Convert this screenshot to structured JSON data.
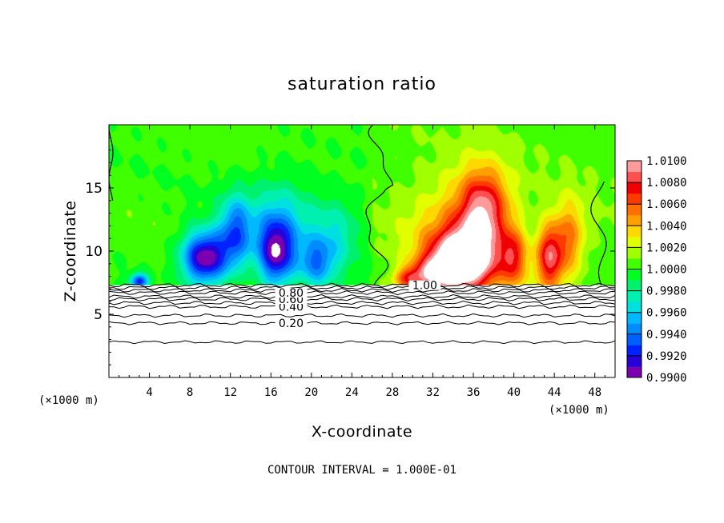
{
  "chart_data": {
    "type": "heatmap",
    "title": "saturation ratio",
    "xlabel": "X-coordinate",
    "ylabel": "Z-coordinate",
    "x_unit": "(×1000 m)",
    "x_unit_right": "(×1000 m)",
    "xlim": [
      0,
      50
    ],
    "ylim": [
      0,
      20
    ],
    "x_ticks": [
      "4",
      "8",
      "12",
      "16",
      "20",
      "24",
      "28",
      "32",
      "36",
      "40",
      "44",
      "48"
    ],
    "x_tick_values": [
      4,
      8,
      12,
      16,
      20,
      24,
      28,
      32,
      36,
      40,
      44,
      48
    ],
    "y_ticks": [
      "5",
      "10",
      "15"
    ],
    "y_tick_values": [
      5,
      10,
      15
    ],
    "colorbar": {
      "labels": [
        "1.0100",
        "1.0080",
        "1.0060",
        "1.0040",
        "1.0020",
        "1.0000",
        "0.9980",
        "0.9960",
        "0.9940",
        "0.9920",
        "0.9900"
      ],
      "min": 0.99,
      "max": 1.01,
      "colors": [
        "#7a00b0",
        "#2a00d8",
        "#0022ff",
        "#0060ff",
        "#008cff",
        "#00b8ff",
        "#00e0e0",
        "#00f0b0",
        "#00f070",
        "#00ff20",
        "#40ff00",
        "#a0ff00",
        "#e0ff00",
        "#ffd800",
        "#ffa000",
        "#ff7000",
        "#ff3a00",
        "#f00000",
        "#ff5050",
        "#ff9a9a"
      ]
    },
    "contour_lines": [
      {
        "label": "0.20",
        "z": 4.3
      },
      {
        "label": "0.40",
        "z": 5.6
      },
      {
        "label": "0.60",
        "z": 6.2
      },
      {
        "label": "0.80",
        "z": 6.7
      },
      {
        "label": "1.00",
        "z": 7.3
      }
    ],
    "extra_contour_heights": [
      2.8,
      4.9,
      5.9,
      6.4,
      6.9,
      7.1
    ],
    "cloud_base_z": 7.3,
    "undersaturated_features": [
      {
        "x": 3,
        "z": 7.6,
        "sx": 0.9,
        "sz": 0.6,
        "amp": -0.008
      },
      {
        "x": 9.5,
        "z": 9.5,
        "sx": 2.3,
        "sz": 2.1,
        "amp": -0.0105
      },
      {
        "x": 12.5,
        "z": 11.5,
        "sx": 1.6,
        "sz": 2.8,
        "amp": -0.006
      },
      {
        "x": 16.5,
        "z": 9.8,
        "sx": 1.8,
        "sz": 2.6,
        "amp": -0.0085
      },
      {
        "x": 20.5,
        "z": 9.0,
        "sx": 1.8,
        "sz": 2.0,
        "amp": -0.005
      },
      {
        "x": 17,
        "z": 12.5,
        "sx": 3.5,
        "sz": 3.5,
        "amp": -0.0035
      },
      {
        "x": 22.5,
        "z": 11.5,
        "sx": 2.5,
        "sz": 3.0,
        "amp": -0.003
      }
    ],
    "supersaturated_features": [
      {
        "x": 35,
        "z": 9.2,
        "sx": 3.2,
        "sz": 2.4,
        "amp": 0.011
      },
      {
        "x": 37,
        "z": 13.2,
        "sx": 2.4,
        "sz": 3.2,
        "amp": 0.0075
      },
      {
        "x": 34.5,
        "z": 11.5,
        "sx": 4.8,
        "sz": 4.8,
        "amp": 0.0035
      },
      {
        "x": 32,
        "z": 8.2,
        "sx": 2.2,
        "sz": 1.4,
        "amp": 0.0055
      },
      {
        "x": 40,
        "z": 9.5,
        "sx": 1.2,
        "sz": 2.4,
        "amp": 0.0055
      },
      {
        "x": 43.5,
        "z": 9.5,
        "sx": 1.4,
        "sz": 2.6,
        "amp": 0.0075
      },
      {
        "x": 45.5,
        "z": 11,
        "sx": 1.6,
        "sz": 3.0,
        "amp": 0.0045
      },
      {
        "x": 29.5,
        "z": 7.8,
        "sx": 1.4,
        "sz": 0.8,
        "amp": 0.005
      }
    ],
    "background_value": 1.0003,
    "annotation": "CONTOUR INTERVAL = 1.000E-01"
  }
}
